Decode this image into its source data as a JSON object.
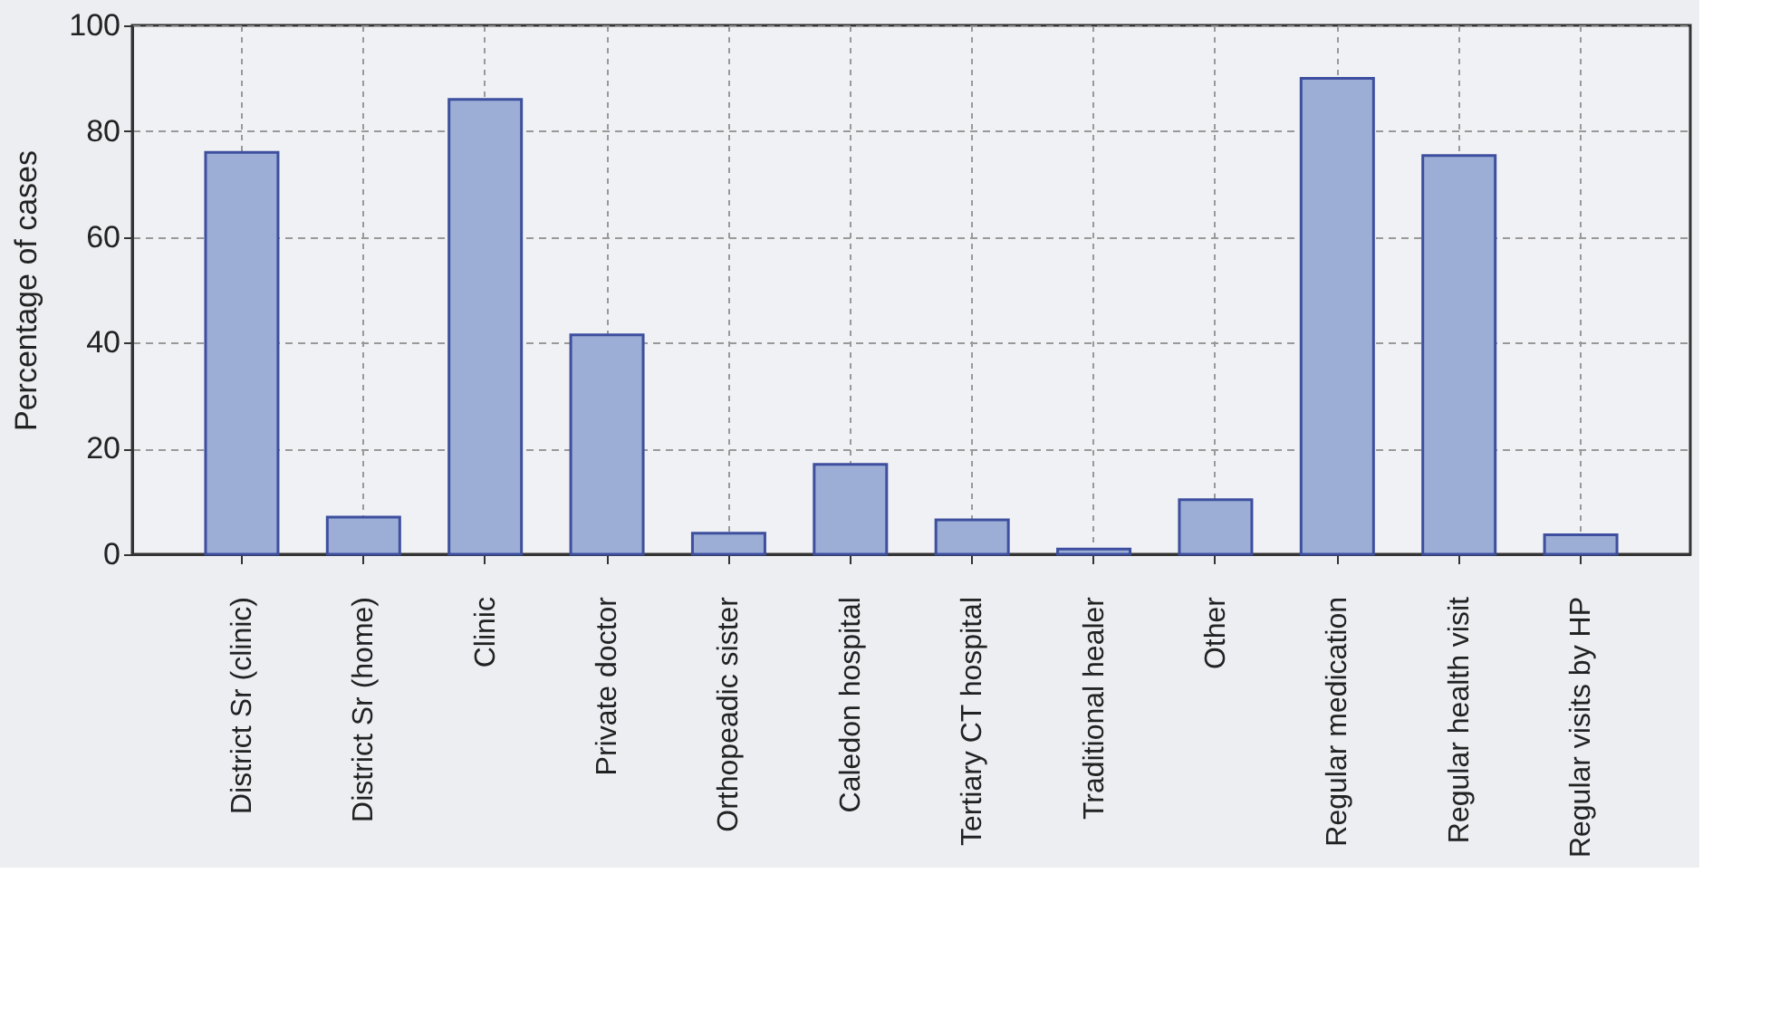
{
  "chart_data": {
    "type": "bar",
    "ylabel": "Percentage of cases",
    "categories": [
      "District Sr (clinic)",
      "District Sr (home)",
      "Clinic",
      "Private doctor",
      "Orthopeadic sister",
      "Caledon hospital",
      "Tertiary CT hospital",
      "Traditional healer",
      "Other",
      "Regular medication",
      "Regular health visit",
      "Regular visits by HP"
    ],
    "values": [
      76,
      7,
      86,
      41.5,
      4,
      17,
      6.5,
      1,
      10.3,
      90,
      75.4,
      3.7
    ],
    "color": "#9caed6",
    "ylim": [
      0,
      100
    ],
    "yticks": [
      0,
      20,
      40,
      60,
      80,
      100
    ],
    "grid": true
  }
}
